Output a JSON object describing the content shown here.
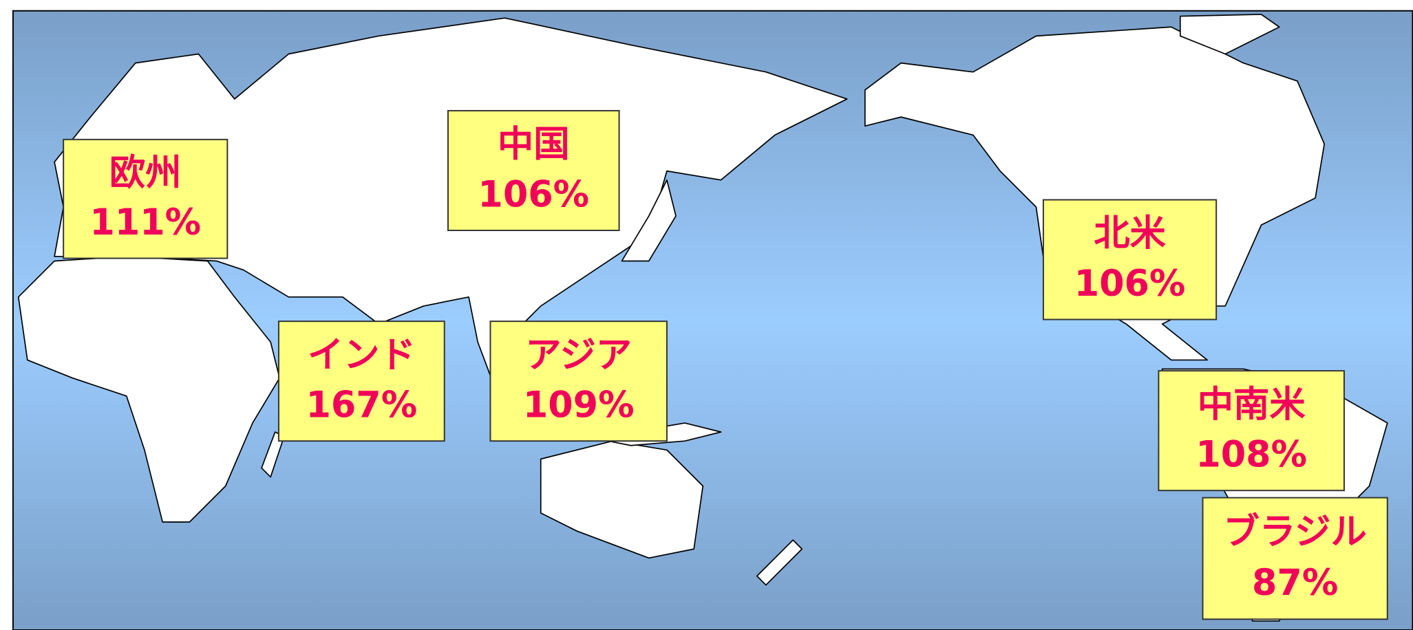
{
  "regions": [
    {
      "name": "欧州",
      "value": "111%"
    },
    {
      "name": "中国",
      "value": "106%"
    },
    {
      "name": "北米",
      "value": "106%"
    },
    {
      "name": "インド",
      "value": "167%"
    },
    {
      "name": "アジア",
      "value": "109%"
    },
    {
      "name": "中南米",
      "value": "108%"
    },
    {
      "name": "ブラジル",
      "value": "87%"
    }
  ]
}
